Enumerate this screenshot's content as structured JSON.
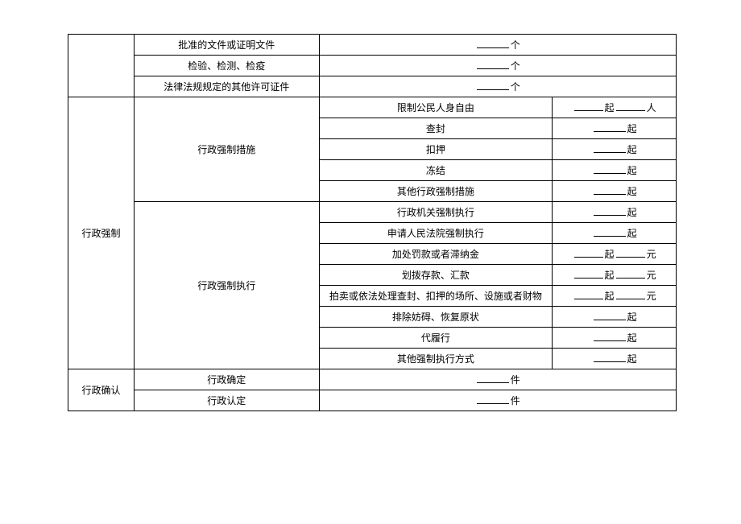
{
  "rows": {
    "r1c2": "批准的文件或证明文件",
    "r1unit": "个",
    "r2c2": "检验、检测、检疫",
    "r2unit": "个",
    "r3c2": "法律法规规定的其他许可证件",
    "r3unit": "个",
    "coercion_label": "行政强制",
    "measure_label": "行政强制措施",
    "enforce_label": "行政强制执行",
    "confirm_label": "行政确认",
    "m1": "限制公民人身自由",
    "m1u1": "起",
    "m1u2": "人",
    "m2": "查封",
    "m2u": "起",
    "m3": "扣押",
    "m3u": "起",
    "m4": "冻结",
    "m4u": "起",
    "m5": "其他行政强制措施",
    "m5u": "起",
    "e1": "行政机关强制执行",
    "e1u": "起",
    "e2": "申请人民法院强制执行",
    "e2u": "起",
    "e3": "加处罚款或者滞纳金",
    "e3u1": "起",
    "e3u2": "元",
    "e4": "划拨存款、汇款",
    "e4u1": "起",
    "e4u2": "元",
    "e5": "拍卖或依法处理查封、扣押的场所、设施或者财物",
    "e5u1": "起",
    "e5u2": "元",
    "e6": "排除妨碍、恢复原状",
    "e6u": "起",
    "e7": "代履行",
    "e7u": "起",
    "e8": "其他强制执行方式",
    "e8u": "起",
    "c1": "行政确定",
    "c1u": "件",
    "c2": "行政认定",
    "c2u": "件"
  },
  "style": {
    "border_color": "#000000",
    "bg": "#ffffff",
    "font_size": 12
  }
}
